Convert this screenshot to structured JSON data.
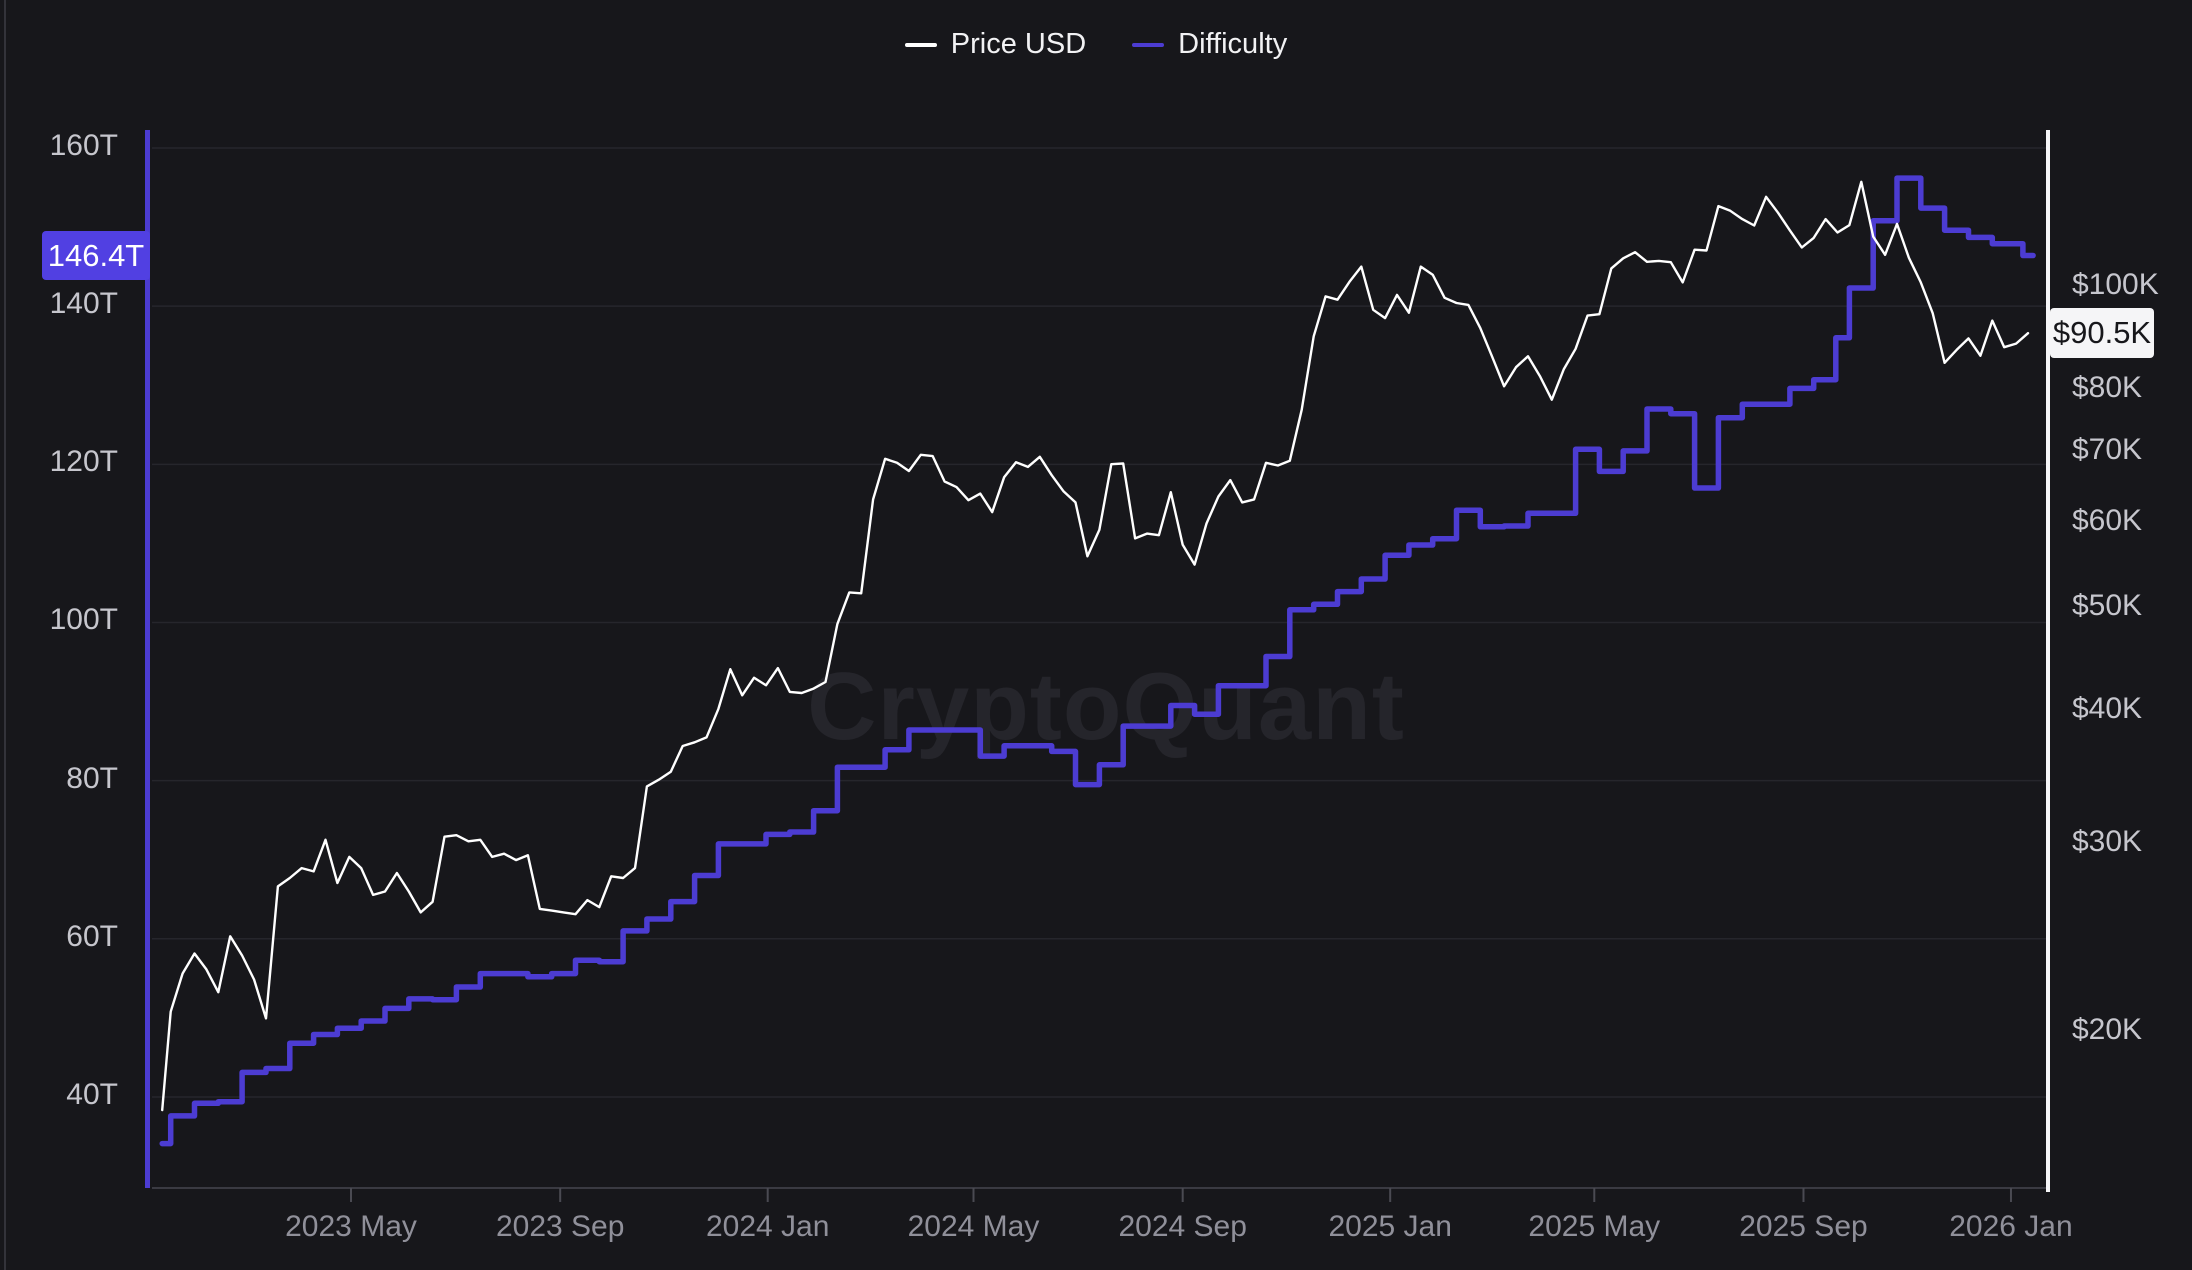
{
  "watermark": "CryptoQuant",
  "legend": {
    "items": [
      {
        "label": "Price USD",
        "color": "#ffffff"
      },
      {
        "label": "Difficulty",
        "color": "#4c3cd2"
      }
    ]
  },
  "badges": {
    "difficulty": {
      "text": "146.4T",
      "value": 146.4,
      "bg": "#5140e2"
    },
    "price": {
      "text": "$90.5K",
      "value": 90.5,
      "bg": "#f5f5f7"
    }
  },
  "chart_data": {
    "type": "line",
    "title": "",
    "x_axis": {
      "range": [
        "2023-01-10",
        "2026-01-14"
      ],
      "ticks": [
        {
          "label": "2023 May",
          "date": "2023-05-01"
        },
        {
          "label": "2023 Sep",
          "date": "2023-09-01"
        },
        {
          "label": "2024 Jan",
          "date": "2024-01-01"
        },
        {
          "label": "2024 May",
          "date": "2024-05-01"
        },
        {
          "label": "2024 Sep",
          "date": "2024-09-01"
        },
        {
          "label": "2025 Jan",
          "date": "2025-01-01"
        },
        {
          "label": "2025 May",
          "date": "2025-05-01"
        },
        {
          "label": "2025 Sep",
          "date": "2025-09-01"
        },
        {
          "label": "2026 Jan",
          "date": "2026-01-01"
        }
      ]
    },
    "left_axis": {
      "name": "Difficulty",
      "scale": "linear",
      "unit": "T",
      "color": "#4c3cd2",
      "ticks": [
        {
          "label": "160T",
          "value": 160
        },
        {
          "label": "140T",
          "value": 140
        },
        {
          "label": "120T",
          "value": 120
        },
        {
          "label": "100T",
          "value": 100
        },
        {
          "label": "80T",
          "value": 80
        },
        {
          "label": "60T",
          "value": 60
        },
        {
          "label": "40T",
          "value": 40
        }
      ],
      "current": "146.4T"
    },
    "right_axis": {
      "name": "Price USD",
      "scale": "log",
      "unit": "K USD",
      "color": "#ffffff",
      "ticks": [
        {
          "label": "$100K",
          "value": 100
        },
        {
          "label": "$80K",
          "value": 80
        },
        {
          "label": "$70K",
          "value": 70
        },
        {
          "label": "$60K",
          "value": 60
        },
        {
          "label": "$50K",
          "value": 50
        },
        {
          "label": "$40K",
          "value": 40
        },
        {
          "label": "$30K",
          "value": 30
        },
        {
          "label": "$20K",
          "value": 20
        }
      ],
      "current": "$90.5K"
    },
    "series": [
      {
        "name": "Price USD",
        "axis": "right",
        "color": "#ffffff",
        "style": "line",
        "unit": "thousand USD",
        "points": [
          [
            "2023-01-10",
            16.9
          ],
          [
            "2023-01-15",
            20.9
          ],
          [
            "2023-01-22",
            22.7
          ],
          [
            "2023-01-29",
            23.7
          ],
          [
            "2023-02-05",
            22.9
          ],
          [
            "2023-02-12",
            21.8
          ],
          [
            "2023-02-19",
            24.6
          ],
          [
            "2023-02-26",
            23.6
          ],
          [
            "2023-03-05",
            22.4
          ],
          [
            "2023-03-12",
            20.6
          ],
          [
            "2023-03-19",
            27.4
          ],
          [
            "2023-03-26",
            27.9
          ],
          [
            "2023-04-02",
            28.5
          ],
          [
            "2023-04-09",
            28.3
          ],
          [
            "2023-04-16",
            30.3
          ],
          [
            "2023-04-23",
            27.6
          ],
          [
            "2023-04-30",
            29.2
          ],
          [
            "2023-05-07",
            28.5
          ],
          [
            "2023-05-14",
            26.9
          ],
          [
            "2023-05-21",
            27.1
          ],
          [
            "2023-05-28",
            28.2
          ],
          [
            "2023-06-04",
            27.1
          ],
          [
            "2023-06-11",
            25.9
          ],
          [
            "2023-06-18",
            26.5
          ],
          [
            "2023-06-25",
            30.5
          ],
          [
            "2023-07-02",
            30.6
          ],
          [
            "2023-07-09",
            30.2
          ],
          [
            "2023-07-16",
            30.3
          ],
          [
            "2023-07-23",
            29.2
          ],
          [
            "2023-07-30",
            29.4
          ],
          [
            "2023-08-06",
            29.0
          ],
          [
            "2023-08-13",
            29.3
          ],
          [
            "2023-08-20",
            26.1
          ],
          [
            "2023-08-27",
            26.0
          ],
          [
            "2023-09-03",
            25.9
          ],
          [
            "2023-09-10",
            25.8
          ],
          [
            "2023-09-17",
            26.6
          ],
          [
            "2023-09-24",
            26.2
          ],
          [
            "2023-10-01",
            28.0
          ],
          [
            "2023-10-08",
            27.9
          ],
          [
            "2023-10-15",
            28.5
          ],
          [
            "2023-10-22",
            34.0
          ],
          [
            "2023-10-29",
            34.5
          ],
          [
            "2023-11-05",
            35.1
          ],
          [
            "2023-11-12",
            37.1
          ],
          [
            "2023-11-19",
            37.4
          ],
          [
            "2023-11-26",
            37.8
          ],
          [
            "2023-12-03",
            40.2
          ],
          [
            "2023-12-10",
            43.8
          ],
          [
            "2023-12-17",
            41.4
          ],
          [
            "2023-12-24",
            43.0
          ],
          [
            "2023-12-31",
            42.3
          ],
          [
            "2024-01-07",
            43.9
          ],
          [
            "2024-01-14",
            41.7
          ],
          [
            "2024-01-21",
            41.6
          ],
          [
            "2024-01-28",
            42.0
          ],
          [
            "2024-02-04",
            42.6
          ],
          [
            "2024-02-11",
            48.3
          ],
          [
            "2024-02-18",
            51.7
          ],
          [
            "2024-02-25",
            51.6
          ],
          [
            "2024-03-03",
            63.2
          ],
          [
            "2024-03-10",
            69.0
          ],
          [
            "2024-03-17",
            68.4
          ],
          [
            "2024-03-24",
            67.2
          ],
          [
            "2024-03-31",
            69.6
          ],
          [
            "2024-04-07",
            69.4
          ],
          [
            "2024-04-14",
            65.7
          ],
          [
            "2024-04-21",
            64.9
          ],
          [
            "2024-04-28",
            63.1
          ],
          [
            "2024-05-05",
            64.0
          ],
          [
            "2024-05-12",
            61.5
          ],
          [
            "2024-05-19",
            66.3
          ],
          [
            "2024-05-26",
            68.5
          ],
          [
            "2024-06-02",
            67.8
          ],
          [
            "2024-06-09",
            69.3
          ],
          [
            "2024-06-16",
            66.6
          ],
          [
            "2024-06-23",
            64.3
          ],
          [
            "2024-06-30",
            62.8
          ],
          [
            "2024-07-07",
            55.9
          ],
          [
            "2024-07-14",
            59.2
          ],
          [
            "2024-07-21",
            68.2
          ],
          [
            "2024-07-28",
            68.3
          ],
          [
            "2024-08-04",
            58.1
          ],
          [
            "2024-08-11",
            58.7
          ],
          [
            "2024-08-18",
            58.5
          ],
          [
            "2024-08-25",
            64.2
          ],
          [
            "2024-09-01",
            57.3
          ],
          [
            "2024-09-08",
            54.9
          ],
          [
            "2024-09-15",
            60.0
          ],
          [
            "2024-09-22",
            63.6
          ],
          [
            "2024-09-29",
            65.9
          ],
          [
            "2024-10-06",
            62.8
          ],
          [
            "2024-10-13",
            63.2
          ],
          [
            "2024-10-20",
            68.4
          ],
          [
            "2024-10-27",
            68.0
          ],
          [
            "2024-11-03",
            68.7
          ],
          [
            "2024-11-10",
            76.7
          ],
          [
            "2024-11-17",
            89.9
          ],
          [
            "2024-11-24",
            98.0
          ],
          [
            "2024-12-01",
            97.3
          ],
          [
            "2024-12-08",
            101.1
          ],
          [
            "2024-12-15",
            104.5
          ],
          [
            "2024-12-22",
            95.2
          ],
          [
            "2024-12-29",
            93.5
          ],
          [
            "2025-01-05",
            98.3
          ],
          [
            "2025-01-12",
            94.6
          ],
          [
            "2025-01-19",
            104.5
          ],
          [
            "2025-01-26",
            102.7
          ],
          [
            "2025-02-02",
            97.7
          ],
          [
            "2025-02-09",
            96.6
          ],
          [
            "2025-02-16",
            96.2
          ],
          [
            "2025-02-23",
            91.5
          ],
          [
            "2025-03-02",
            86.0
          ],
          [
            "2025-03-09",
            80.7
          ],
          [
            "2025-03-16",
            84.1
          ],
          [
            "2025-03-23",
            86.1
          ],
          [
            "2025-03-30",
            82.5
          ],
          [
            "2025-04-06",
            78.4
          ],
          [
            "2025-04-13",
            83.7
          ],
          [
            "2025-04-20",
            87.5
          ],
          [
            "2025-04-27",
            94.0
          ],
          [
            "2025-05-04",
            94.3
          ],
          [
            "2025-05-11",
            104.1
          ],
          [
            "2025-05-18",
            106.4
          ],
          [
            "2025-05-25",
            107.8
          ],
          [
            "2025-06-01",
            105.6
          ],
          [
            "2025-06-08",
            105.8
          ],
          [
            "2025-06-15",
            105.5
          ],
          [
            "2025-06-22",
            101.0
          ],
          [
            "2025-06-29",
            108.4
          ],
          [
            "2025-07-06",
            108.2
          ],
          [
            "2025-07-13",
            119.1
          ],
          [
            "2025-07-20",
            117.9
          ],
          [
            "2025-07-27",
            115.8
          ],
          [
            "2025-08-03",
            114.2
          ],
          [
            "2025-08-10",
            121.5
          ],
          [
            "2025-08-17",
            117.4
          ],
          [
            "2025-08-24",
            113.0
          ],
          [
            "2025-08-31",
            108.9
          ],
          [
            "2025-09-07",
            111.2
          ],
          [
            "2025-09-14",
            115.8
          ],
          [
            "2025-09-21",
            112.5
          ],
          [
            "2025-09-28",
            114.3
          ],
          [
            "2025-10-05",
            125.5
          ],
          [
            "2025-10-12",
            111.5
          ],
          [
            "2025-10-19",
            107.2
          ],
          [
            "2025-10-26",
            114.6
          ],
          [
            "2025-11-02",
            106.5
          ],
          [
            "2025-11-09",
            101.0
          ],
          [
            "2025-11-16",
            94.5
          ],
          [
            "2025-11-23",
            84.9
          ],
          [
            "2025-11-30",
            87.3
          ],
          [
            "2025-12-07",
            89.5
          ],
          [
            "2025-12-14",
            86.2
          ],
          [
            "2025-12-21",
            93.0
          ],
          [
            "2025-12-28",
            87.8
          ],
          [
            "2026-01-04",
            88.5
          ],
          [
            "2026-01-11",
            90.5
          ]
        ]
      },
      {
        "name": "Difficulty",
        "axis": "left",
        "color": "#4c3cd2",
        "style": "step",
        "unit": "T",
        "points": [
          [
            "2023-01-10",
            34.1
          ],
          [
            "2023-01-15",
            37.6
          ],
          [
            "2023-01-29",
            39.2
          ],
          [
            "2023-02-12",
            39.4
          ],
          [
            "2023-02-26",
            43.1
          ],
          [
            "2023-03-12",
            43.6
          ],
          [
            "2023-03-26",
            46.8
          ],
          [
            "2023-04-09",
            47.9
          ],
          [
            "2023-04-23",
            48.7
          ],
          [
            "2023-05-07",
            49.6
          ],
          [
            "2023-05-21",
            51.2
          ],
          [
            "2023-06-04",
            52.4
          ],
          [
            "2023-06-18",
            52.3
          ],
          [
            "2023-07-02",
            53.9
          ],
          [
            "2023-07-16",
            55.6
          ],
          [
            "2023-07-30",
            55.6
          ],
          [
            "2023-08-13",
            55.2
          ],
          [
            "2023-08-27",
            55.6
          ],
          [
            "2023-09-10",
            57.3
          ],
          [
            "2023-09-24",
            57.1
          ],
          [
            "2023-10-08",
            61.0
          ],
          [
            "2023-10-22",
            62.5
          ],
          [
            "2023-11-05",
            64.7
          ],
          [
            "2023-11-19",
            68.0
          ],
          [
            "2023-12-03",
            72.0
          ],
          [
            "2023-12-17",
            72.0
          ],
          [
            "2023-12-31",
            73.2
          ],
          [
            "2024-01-14",
            73.5
          ],
          [
            "2024-01-28",
            76.2
          ],
          [
            "2024-02-11",
            81.7
          ],
          [
            "2024-02-25",
            81.7
          ],
          [
            "2024-03-10",
            83.9
          ],
          [
            "2024-03-24",
            86.4
          ],
          [
            "2024-04-07",
            86.4
          ],
          [
            "2024-04-21",
            86.4
          ],
          [
            "2024-05-05",
            83.1
          ],
          [
            "2024-05-19",
            84.4
          ],
          [
            "2024-06-02",
            84.4
          ],
          [
            "2024-06-16",
            83.7
          ],
          [
            "2024-06-30",
            79.5
          ],
          [
            "2024-07-14",
            82.0
          ],
          [
            "2024-07-28",
            86.9
          ],
          [
            "2024-08-11",
            86.9
          ],
          [
            "2024-08-25",
            89.5
          ],
          [
            "2024-09-08",
            88.4
          ],
          [
            "2024-09-22",
            92.0
          ],
          [
            "2024-10-06",
            92.0
          ],
          [
            "2024-10-20",
            95.7
          ],
          [
            "2024-11-03",
            101.6
          ],
          [
            "2024-11-17",
            102.3
          ],
          [
            "2024-12-01",
            103.9
          ],
          [
            "2024-12-15",
            105.5
          ],
          [
            "2024-12-29",
            108.5
          ],
          [
            "2025-01-12",
            109.8
          ],
          [
            "2025-01-26",
            110.6
          ],
          [
            "2025-02-09",
            114.2
          ],
          [
            "2025-02-23",
            112.1
          ],
          [
            "2025-03-09",
            112.2
          ],
          [
            "2025-03-23",
            113.8
          ],
          [
            "2025-04-06",
            113.8
          ],
          [
            "2025-04-20",
            121.9
          ],
          [
            "2025-05-04",
            119.1
          ],
          [
            "2025-05-18",
            121.7
          ],
          [
            "2025-06-01",
            127.0
          ],
          [
            "2025-06-15",
            126.4
          ],
          [
            "2025-06-29",
            117.0
          ],
          [
            "2025-07-13",
            125.9
          ],
          [
            "2025-07-27",
            127.6
          ],
          [
            "2025-08-10",
            127.6
          ],
          [
            "2025-08-24",
            129.6
          ],
          [
            "2025-09-07",
            130.7
          ],
          [
            "2025-09-20",
            136.0
          ],
          [
            "2025-09-28",
            142.3
          ],
          [
            "2025-10-12",
            150.8
          ],
          [
            "2025-10-26",
            156.2
          ],
          [
            "2025-11-09",
            152.4
          ],
          [
            "2025-11-23",
            149.6
          ],
          [
            "2025-12-07",
            148.7
          ],
          [
            "2025-12-21",
            147.9
          ],
          [
            "2026-01-08",
            146.4
          ]
        ]
      }
    ],
    "layout_hints": {
      "grid": "horizontal-left-axis",
      "legend_position": "top-center",
      "background": "#17171b"
    }
  }
}
